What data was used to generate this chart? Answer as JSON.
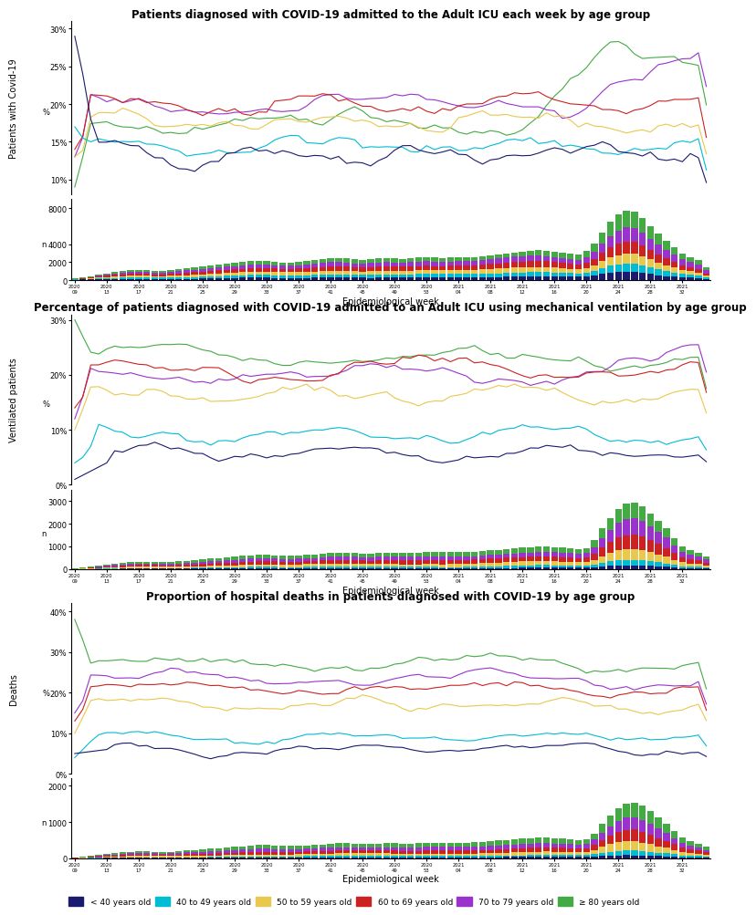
{
  "title1": "Patients diagnosed with COVID-19 admitted to the Adult ICU each week by age group",
  "title2": "Percentage of patients diagnosed with COVID-19 admitted to an Adult ICU using mechanical ventilation by age group",
  "title3": "Proportion of hospital deaths in patients diagnosed with COVID-19 by age group",
  "xlabel": "Epidemiological week",
  "ylabel1": "Patients with Covid-19",
  "ylabel2": "Ventilated patients",
  "ylabel3": "Deaths",
  "ylabel_pct": "%",
  "ylabel_n": "n",
  "colors": {
    "lt40": "#1a1a6e",
    "40to49": "#00bcd4",
    "50to59": "#e8c84d",
    "60to69": "#cc2222",
    "70to79": "#9933cc",
    "ge80": "#44aa44"
  },
  "legend_labels": [
    "< 40 years old",
    "40 to 49 years old",
    "50 to 59 years old",
    "60 to 69 years old",
    "70 to 79 years old",
    "≥ 80 years old"
  ],
  "n_weeks": 80,
  "line_ylim1": [
    0.08,
    0.31
  ],
  "line_yticks1": [
    0.1,
    0.15,
    0.2,
    0.25,
    0.3
  ],
  "line_yticklabels1": [
    "10%",
    "15%",
    "20%",
    "25%",
    "30%"
  ],
  "bar_ylim1": [
    0,
    9000
  ],
  "bar_yticks1": [
    0,
    2000,
    4000,
    8000
  ],
  "line_ylim2": [
    0.0,
    0.31
  ],
  "line_yticks2": [
    0.0,
    0.1,
    0.2,
    0.3
  ],
  "line_yticklabels2": [
    "0%",
    "10%",
    "20%",
    "30%"
  ],
  "bar_ylim2": [
    0,
    3500
  ],
  "bar_yticks2": [
    0,
    1000,
    2000,
    3000
  ],
  "line_ylim3": [
    0.0,
    0.42
  ],
  "line_yticks3": [
    0.0,
    0.1,
    0.2,
    0.3,
    0.4
  ],
  "line_yticklabels3": [
    "0%",
    "10%",
    "20%",
    "30%",
    "40%"
  ],
  "bar_ylim3": [
    0,
    2200
  ],
  "bar_yticks3": [
    0,
    1000,
    2000
  ],
  "background_color": "#ffffff",
  "title_fontsize": 8.5,
  "tick_fontsize": 6,
  "label_fontsize": 7,
  "lw": 0.8
}
